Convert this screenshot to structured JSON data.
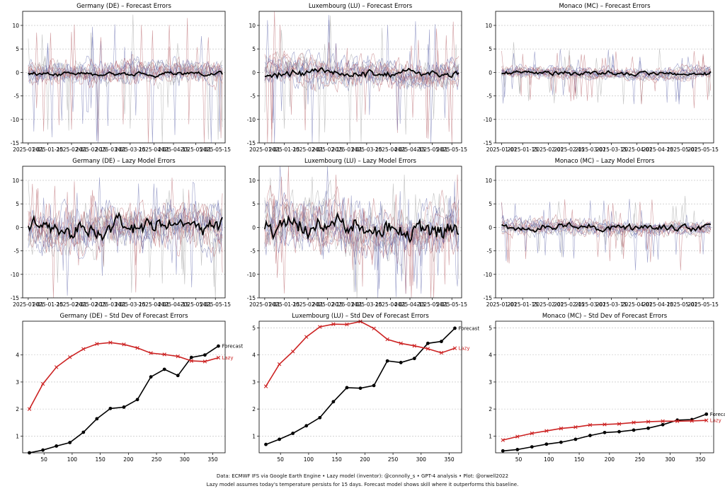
{
  "footer": {
    "line1": "Data: ECMWF IFS via Google Earth Engine • Lazy model (inventor): @connolly_s • GPT-4 analysis • Plot: @orwell2022",
    "line2": "Lazy model assumes today's temperature persists for 15 days. Forecast model shows skill where it outperforms this baseline."
  },
  "colors": {
    "mean_line": "#000000",
    "warm_spaghetti": "#b2595f",
    "cool_spaghetti": "#5b62a8",
    "grey_spaghetti": "#9a9a9a",
    "forecast": "#000000",
    "lazy": "#cc2222",
    "grid": "#bbbbbb"
  },
  "chart_data": [
    {
      "type": "line",
      "title": "Germany (DE) – Forecast Errors",
      "seed": 11,
      "amplitude": 0.55,
      "spike_scale": 1.6,
      "mean_amp": 0.25,
      "mean_offset": -0.3,
      "ylim": [
        -15,
        13
      ],
      "yticks": [
        -15,
        -10,
        -5,
        0,
        5,
        10
      ],
      "xticks": [
        "2025-01-01",
        "2025-01-15",
        "2025-02-01",
        "2025-02-15",
        "2025-03-01",
        "2025-03-15",
        "2025-04-01",
        "2025-04-15",
        "2025-05-01",
        "2025-05-15"
      ],
      "xtick_labels": [
        "2025-01-01",
        "2025-01-15",
        "2025-02-01",
        "2025-02-15",
        "2025-03-01",
        "2025-03-15",
        "2025-04-01",
        "2025-04-15",
        "2025-05-01",
        "2025-05-15"
      ],
      "grid": "y",
      "legend": "none"
    },
    {
      "type": "line",
      "title": "Luxembourg (LU) – Forecast Errors",
      "seed": 23,
      "amplitude": 0.6,
      "spike_scale": 1.7,
      "mean_amp": 0.45,
      "mean_offset": -0.2,
      "ylim": [
        -15,
        13
      ],
      "yticks": [
        -15,
        -10,
        -5,
        0,
        5,
        10
      ],
      "xticks": [
        "2025-01-01",
        "2025-01-15",
        "2025-02-01",
        "2025-02-15",
        "2025-03-01",
        "2025-03-15",
        "2025-04-01",
        "2025-04-15",
        "2025-05-01",
        "2025-05-15"
      ],
      "xtick_labels": [
        "2025-01-01",
        "2025-01-15",
        "2025-02-01",
        "2025-02-15",
        "2025-03-01",
        "2025-03-15",
        "2025-04-01",
        "2025-04-15",
        "2025-05-01",
        "2025-05-15"
      ],
      "grid": "y",
      "legend": "none"
    },
    {
      "type": "line",
      "title": "Monaco (MC) – Forecast Errors",
      "seed": 37,
      "amplitude": 0.28,
      "spike_scale": 0.7,
      "mean_amp": 0.25,
      "mean_offset": -0.1,
      "ylim": [
        -15,
        13
      ],
      "yticks": [
        -15,
        -10,
        -5,
        0,
        5,
        10
      ],
      "xticks": [
        "2025-01-01",
        "2025-01-15",
        "2025-02-01",
        "2025-02-15",
        "2025-03-01",
        "2025-03-15",
        "2025-04-01",
        "2025-04-15",
        "2025-05-01",
        "2025-05-15"
      ],
      "xtick_labels": [
        "2025-01-01",
        "2025-01-15",
        "2025-02-01",
        "2025-02-15",
        "2025-03-01",
        "2025-03-15",
        "2025-04-01",
        "2025-04-15",
        "2025-05-01",
        "2025-05-15"
      ],
      "grid": "y",
      "legend": "none"
    },
    {
      "type": "line",
      "title": "Germany (DE) – Lazy Model Errors",
      "seed": 41,
      "amplitude": 1.0,
      "spike_scale": 1.3,
      "mean_amp": 1.0,
      "mean_offset": 0,
      "ylim": [
        -15,
        13
      ],
      "yticks": [
        -15,
        -10,
        -5,
        0,
        5,
        10
      ],
      "xticks": [
        "2025-01-01",
        "2025-01-15",
        "2025-02-01",
        "2025-02-15",
        "2025-03-01",
        "2025-03-15",
        "2025-04-01",
        "2025-04-15",
        "2025-05-01",
        "2025-05-15"
      ],
      "xtick_labels": [
        "2025-01-01",
        "2025-01-15",
        "2025-02-01",
        "2025-02-15",
        "2025-03-01",
        "2025-03-15",
        "2025-04-01",
        "2025-04-15",
        "2025-05-01",
        "2025-05-15"
      ],
      "grid": "y",
      "legend": "none"
    },
    {
      "type": "line",
      "title": "Luxembourg (LU) – Lazy Model Errors",
      "seed": 53,
      "amplitude": 1.05,
      "spike_scale": 1.5,
      "mean_amp": 1.2,
      "mean_offset": 0,
      "ylim": [
        -15,
        13
      ],
      "yticks": [
        -15,
        -10,
        -5,
        0,
        5,
        10
      ],
      "xticks": [
        "2025-01-01",
        "2025-01-15",
        "2025-02-01",
        "2025-02-15",
        "2025-03-01",
        "2025-03-15",
        "2025-04-01",
        "2025-04-15",
        "2025-05-01",
        "2025-05-15"
      ],
      "xtick_labels": [
        "2025-01-01",
        "2025-01-15",
        "2025-02-01",
        "2025-02-15",
        "2025-03-01",
        "2025-03-15",
        "2025-04-01",
        "2025-04-15",
        "2025-05-01",
        "2025-05-15"
      ],
      "grid": "y",
      "legend": "none"
    },
    {
      "type": "line",
      "title": "Monaco (MC) – Lazy Model Errors",
      "seed": 67,
      "amplitude": 0.35,
      "spike_scale": 0.8,
      "mean_amp": 0.4,
      "mean_offset": 0,
      "ylim": [
        -15,
        13
      ],
      "yticks": [
        -15,
        -10,
        -5,
        0,
        5,
        10
      ],
      "xticks": [
        "2025-01-01",
        "2025-01-15",
        "2025-02-01",
        "2025-02-15",
        "2025-03-01",
        "2025-03-15",
        "2025-04-01",
        "2025-04-15",
        "2025-05-01",
        "2025-05-15"
      ],
      "xtick_labels": [
        "2025-01-01",
        "2025-01-15",
        "2025-02-01",
        "2025-02-15",
        "2025-03-01",
        "2025-03-15",
        "2025-04-01",
        "2025-04-15",
        "2025-05-01",
        "2025-05-15"
      ],
      "grid": "y",
      "legend": "none"
    },
    {
      "type": "line",
      "title": "Germany (DE) – Std Dev of Forecast Errors",
      "x": [
        24,
        48,
        72,
        96,
        120,
        144,
        168,
        192,
        216,
        240,
        264,
        288,
        312,
        336,
        360
      ],
      "series": [
        {
          "name": "Forecast",
          "values": [
            0.38,
            0.48,
            0.63,
            0.76,
            1.14,
            1.64,
            2.02,
            2.07,
            2.35,
            3.19,
            3.47,
            3.24,
            3.91,
            4.0,
            4.33
          ]
        },
        {
          "name": "Lazy",
          "values": [
            2.0,
            2.93,
            3.55,
            3.92,
            4.22,
            4.41,
            4.46,
            4.39,
            4.26,
            4.07,
            4.02,
            3.95,
            3.78,
            3.76,
            3.9
          ]
        }
      ],
      "xlim": [
        12,
        372
      ],
      "ylim": [
        0.38,
        5.25
      ],
      "xticks": [
        50,
        100,
        150,
        200,
        250,
        300,
        350
      ],
      "yticks": [
        1,
        2,
        3,
        4
      ],
      "grid": "y",
      "legend": "end labels"
    },
    {
      "type": "line",
      "title": "Luxembourg (LU) – Std Dev of Forecast Errors",
      "x": [
        24,
        48,
        72,
        96,
        120,
        144,
        168,
        192,
        216,
        240,
        264,
        288,
        312,
        336,
        360
      ],
      "series": [
        {
          "name": "Forecast",
          "values": [
            0.69,
            0.88,
            1.1,
            1.38,
            1.68,
            2.27,
            2.79,
            2.77,
            2.87,
            3.78,
            3.72,
            3.87,
            4.43,
            4.5,
            4.99
          ]
        },
        {
          "name": "Lazy",
          "values": [
            2.84,
            3.66,
            4.13,
            4.67,
            5.04,
            5.14,
            5.13,
            5.24,
            4.98,
            4.58,
            4.43,
            4.34,
            4.23,
            4.08,
            4.25
          ]
        }
      ],
      "xlim": [
        12,
        372
      ],
      "ylim": [
        0.38,
        5.25
      ],
      "xticks": [
        50,
        100,
        150,
        200,
        250,
        300,
        350
      ],
      "yticks": [
        1,
        2,
        3,
        4,
        5
      ],
      "grid": "y",
      "legend": "end labels"
    },
    {
      "type": "line",
      "title": "Monaco (MC) – Std Dev of Forecast Errors",
      "x": [
        24,
        48,
        72,
        96,
        120,
        144,
        168,
        192,
        216,
        240,
        264,
        288,
        312,
        336,
        360
      ],
      "series": [
        {
          "name": "Forecast",
          "values": [
            0.45,
            0.5,
            0.6,
            0.7,
            0.77,
            0.88,
            1.02,
            1.13,
            1.16,
            1.22,
            1.29,
            1.42,
            1.59,
            1.61,
            1.81
          ]
        },
        {
          "name": "Lazy",
          "values": [
            0.85,
            0.98,
            1.1,
            1.19,
            1.28,
            1.33,
            1.41,
            1.43,
            1.45,
            1.5,
            1.53,
            1.55,
            1.55,
            1.56,
            1.58
          ]
        }
      ],
      "xlim": [
        12,
        372
      ],
      "ylim": [
        0.38,
        5.25
      ],
      "xticks": [
        50,
        100,
        150,
        200,
        250,
        300,
        350
      ],
      "yticks": [
        1,
        2,
        3,
        4,
        5
      ],
      "grid": "y",
      "legend": "end labels"
    }
  ]
}
